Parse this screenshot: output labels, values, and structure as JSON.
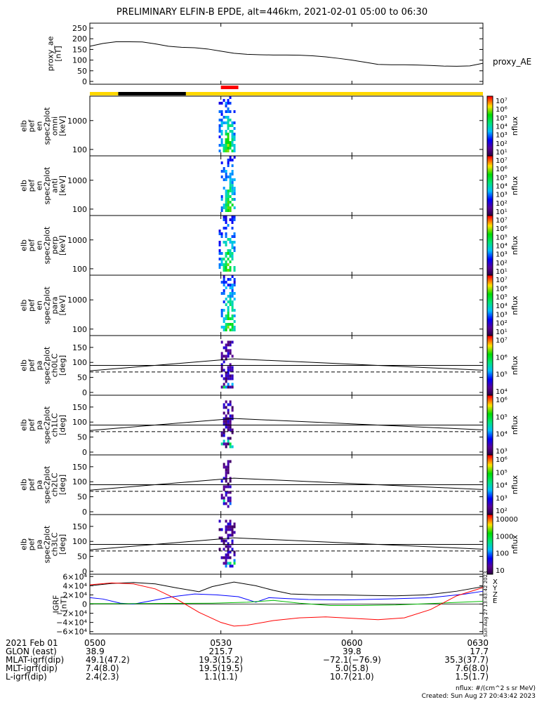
{
  "title": "PRELIMINARY ELFIN-B EPDE, alt=446km, 2021-02-01 05:00 to 06:30",
  "chart_data": [
    {
      "type": "line",
      "ylabel_lines": [
        "proxy_ae",
        "[nT]"
      ],
      "legend": "proxy_AE",
      "ylim": [
        0,
        260
      ],
      "yticks": [
        "250",
        "200",
        "150",
        "100",
        "50",
        "0"
      ],
      "ytick_values": [
        250,
        200,
        150,
        100,
        50,
        0
      ],
      "series": [
        {
          "x": [
            0,
            3,
            6,
            9,
            12,
            15,
            18,
            21,
            24,
            27,
            30,
            33,
            36,
            39,
            42,
            45,
            48,
            51,
            54,
            57,
            60,
            63,
            66,
            69,
            72,
            75,
            78,
            81,
            84,
            87,
            90
          ],
          "values": [
            165,
            178,
            186,
            186,
            185,
            176,
            165,
            160,
            158,
            152,
            142,
            132,
            127,
            125,
            124,
            124,
            123,
            120,
            115,
            108,
            100,
            90,
            80,
            78,
            78,
            77,
            75,
            72,
            71,
            73,
            85
          ]
        }
      ]
    },
    {
      "type": "bar",
      "name": "orbit bars",
      "segments": [
        {
          "t": [
            0,
            6.5
          ],
          "color": "#ffd700"
        },
        {
          "t": [
            6.5,
            22
          ],
          "color": "#000000"
        },
        {
          "t": [
            22,
            90
          ],
          "color": "#ffd700"
        }
      ],
      "science_zone": {
        "t": [
          30,
          34
        ],
        "color": "#ff0000"
      }
    },
    {
      "type": "heatmap",
      "ylabel_lines": [
        "elb",
        "pef",
        "en",
        "spec2plot",
        "omni",
        "[keV]"
      ],
      "yscale": "log",
      "ylim": [
        60,
        7000
      ],
      "yticks": [
        "1000",
        "100"
      ],
      "ytick_values": [
        1000,
        100
      ],
      "t_range": [
        29.5,
        33.5
      ],
      "colorbar": {
        "label": "nflux",
        "scale": "log",
        "range": [
          10,
          10000000
        ],
        "ticks": [
          "10⁷",
          "10⁶",
          "10⁵",
          "10⁴",
          "10³",
          "10²",
          "10¹"
        ]
      }
    },
    {
      "type": "heatmap",
      "ylabel_lines": [
        "elb",
        "pef",
        "en",
        "spec2plot",
        "anti",
        "[keV]"
      ],
      "yscale": "log",
      "ylim": [
        60,
        7000
      ],
      "yticks": [
        "1000",
        "100"
      ],
      "ytick_values": [
        1000,
        100
      ],
      "t_range": [
        30,
        33.5
      ],
      "colorbar": {
        "label": "nflux",
        "scale": "log",
        "range": [
          10,
          10000000
        ],
        "ticks": [
          "10⁷",
          "10⁶",
          "10⁵",
          "10⁴",
          "10³",
          "10²",
          "10¹"
        ]
      }
    },
    {
      "type": "heatmap",
      "ylabel_lines": [
        "elb",
        "pef",
        "en",
        "spec2plot",
        "perp",
        "[keV]"
      ],
      "yscale": "log",
      "ylim": [
        60,
        7000
      ],
      "yticks": [
        "1000",
        "100"
      ],
      "ytick_values": [
        1000,
        100
      ],
      "t_range": [
        29.5,
        33.5
      ],
      "colorbar": {
        "label": "nflux",
        "scale": "log",
        "range": [
          10,
          10000000
        ],
        "ticks": [
          "10⁷",
          "10⁶",
          "10⁵",
          "10⁴",
          "10³",
          "10²",
          "10¹"
        ]
      }
    },
    {
      "type": "heatmap",
      "ylabel_lines": [
        "elb",
        "pef",
        "en",
        "spec2plot",
        "para",
        "[keV]"
      ],
      "yscale": "log",
      "ylim": [
        60,
        7000
      ],
      "yticks": [
        "1000",
        "100"
      ],
      "ytick_values": [
        1000,
        100
      ],
      "t_range": [
        30,
        33.5
      ],
      "colorbar": {
        "label": "nflux",
        "scale": "log",
        "range": [
          10,
          10000000
        ],
        "ticks": [
          "10⁷",
          "10⁶",
          "10⁵",
          "10⁴",
          "10³",
          "10²",
          "10¹"
        ]
      }
    },
    {
      "type": "heatmap",
      "ylabel_lines": [
        "elb",
        "pef",
        "pa",
        "spec2plot",
        "ch0LC",
        "[deg]"
      ],
      "yscale": "linear",
      "ylim": [
        0,
        180
      ],
      "yticks": [
        "150",
        "100",
        "50",
        "0"
      ],
      "ytick_values": [
        150,
        100,
        50,
        0
      ],
      "t_range": [
        30,
        33
      ],
      "reference": {
        "solid": 90,
        "dashed": 68
      },
      "lc_curve": {
        "x": [
          0,
          33,
          90
        ],
        "values": [
          72,
          112,
          74
        ]
      },
      "colorbar": {
        "label": "nflux",
        "scale": "log",
        "range": [
          1000,
          10000000
        ],
        "ticks": [
          "10⁷",
          "10⁶",
          "10⁵",
          "10⁴"
        ]
      }
    },
    {
      "type": "heatmap",
      "ylabel_lines": [
        "elb",
        "pef",
        "pa",
        "spec2plot",
        "ch1LC",
        "[deg]"
      ],
      "yscale": "linear",
      "ylim": [
        0,
        180
      ],
      "yticks": [
        "150",
        "100",
        "50",
        "0"
      ],
      "ytick_values": [
        150,
        100,
        50,
        0
      ],
      "t_range": [
        30,
        33
      ],
      "reference": {
        "solid": 90,
        "dashed": 68
      },
      "lc_curve": {
        "x": [
          0,
          33,
          90
        ],
        "values": [
          72,
          112,
          74
        ]
      },
      "colorbar": {
        "label": "nflux",
        "scale": "log",
        "range": [
          1000,
          1000000
        ],
        "ticks": [
          "10⁶",
          "10⁵",
          "10⁴",
          "10³"
        ]
      }
    },
    {
      "type": "heatmap",
      "ylabel_lines": [
        "elb",
        "pef",
        "pa",
        "spec2plot",
        "ch2LC",
        "[deg]"
      ],
      "yscale": "linear",
      "ylim": [
        0,
        180
      ],
      "yticks": [
        "150",
        "100",
        "50",
        "0"
      ],
      "ytick_values": [
        150,
        100,
        50,
        0
      ],
      "t_range": [
        30,
        32.5
      ],
      "reference": {
        "solid": 90,
        "dashed": 68
      },
      "lc_curve": {
        "x": [
          0,
          33,
          90
        ],
        "values": [
          72,
          112,
          74
        ]
      },
      "colorbar": {
        "label": "nflux",
        "scale": "log",
        "range": [
          100,
          1000000
        ],
        "ticks": [
          "10⁶",
          "10⁵",
          "10⁴",
          "10³",
          "10²"
        ]
      }
    },
    {
      "type": "heatmap",
      "ylabel_lines": [
        "elb",
        "pef",
        "pa",
        "spec2plot",
        "ch3LC",
        "[deg]"
      ],
      "yscale": "linear",
      "ylim": [
        0,
        180
      ],
      "yticks": [
        "150",
        "100",
        "50",
        "0"
      ],
      "ytick_values": [
        150,
        100,
        50,
        0
      ],
      "t_range": [
        29.5,
        33.5
      ],
      "reference": {
        "solid": 90,
        "dashed": 68
      },
      "lc_curve": {
        "x": [
          0,
          33,
          90
        ],
        "values": [
          72,
          112,
          74
        ]
      },
      "colorbar": {
        "label": "nflux",
        "scale": "linear",
        "range": [
          10,
          10000
        ],
        "ticks": [
          "10000",
          "1000",
          "100",
          "10"
        ]
      }
    },
    {
      "type": "line",
      "ylabel_lines": [
        "IGRF",
        "[nT]"
      ],
      "ylim": [
        -65000,
        65000
      ],
      "yticks": [
        "6×10⁴",
        "4×10⁴",
        "2×10⁴",
        "0",
        "−2×10⁴",
        "−4×10⁴",
        "−6×10⁴"
      ],
      "ytick_values": [
        60000,
        40000,
        20000,
        0,
        -20000,
        -40000,
        -60000
      ],
      "legend_entries": [
        {
          "label": "X",
          "color": "#000000"
        },
        {
          "label": "Y",
          "color": "#0000ff"
        },
        {
          "label": "Z",
          "color": "#ff0000"
        },
        {
          "label": "E",
          "color": "#00bb00"
        }
      ],
      "series": [
        {
          "name": "black",
          "color": "#000000",
          "x": [
            0,
            5,
            10,
            15,
            20,
            25,
            28,
            33,
            38,
            42,
            46,
            52,
            57,
            63,
            70,
            77,
            84,
            90
          ],
          "values": [
            40000,
            45000,
            47000,
            44000,
            35000,
            27000,
            38000,
            48000,
            40000,
            30000,
            22000,
            20000,
            20000,
            19000,
            18000,
            20000,
            28000,
            38000
          ]
        },
        {
          "name": "blue",
          "color": "#0000ff",
          "x": [
            0,
            3,
            7,
            10,
            14,
            19,
            24,
            29,
            34,
            38,
            41,
            45,
            50,
            58,
            68,
            78,
            86,
            90
          ],
          "values": [
            14000,
            11000,
            2000,
            0,
            7000,
            16000,
            22000,
            20000,
            16000,
            4000,
            14000,
            12000,
            10000,
            9000,
            11000,
            14000,
            22000,
            28000
          ]
        },
        {
          "name": "green",
          "color": "#00bb00",
          "x": [
            0,
            8,
            20,
            28,
            36,
            42,
            48,
            55,
            62,
            70,
            80,
            90
          ],
          "values": [
            1000,
            1000,
            1500,
            2000,
            4000,
            8000,
            2000,
            -3000,
            -3000,
            -2000,
            2000,
            6000
          ]
        },
        {
          "name": "red",
          "color": "#ff0000",
          "x": [
            0,
            5,
            10,
            15,
            20,
            25,
            30,
            33,
            36,
            42,
            48,
            54,
            60,
            66,
            72,
            78,
            84,
            90
          ],
          "values": [
            42000,
            46000,
            44000,
            33000,
            10000,
            -18000,
            -40000,
            -48000,
            -46000,
            -36000,
            -30000,
            -28000,
            -31000,
            -34000,
            -30000,
            -12000,
            18000,
            36000
          ]
        }
      ],
      "side_note": "Sun Aug 27 13:43:42 2023"
    }
  ],
  "xaxis": {
    "ticks": [
      {
        "t": 0,
        "label": "0500"
      },
      {
        "t": 30,
        "label": "0530"
      },
      {
        "t": 60,
        "label": "0600"
      },
      {
        "t": 90,
        "label": "0630"
      }
    ],
    "rows": [
      {
        "label": "2021 Feb 01",
        "values": [
          "0500",
          "0530",
          "0600",
          "0630"
        ]
      },
      {
        "label": "GLON (east)",
        "values": [
          "38.9",
          "215.7",
          "39.8",
          "17.7"
        ]
      },
      {
        "label": "MLAT-igrf(dip)",
        "values": [
          "49.1(47.2)",
          "19.3(15.2)",
          "−72.1(−76.9)",
          "35.3(37.7)"
        ]
      },
      {
        "label": "MLT-igrf(dip)",
        "values": [
          "7.4(8.0)",
          "19.5(19.5)",
          "5.0(5.8)",
          "7.6(8.0)"
        ]
      },
      {
        "label": "L-igrf(dip)",
        "values": [
          "2.4(2.3)",
          "1.1(1.1)",
          "10.7(21.0)",
          "1.5(1.7)"
        ]
      }
    ]
  },
  "footer": {
    "units": "nflux: #/(cm^2 s sr MeV)",
    "created": "Created: Sun Aug 27 20:43:42 2023"
  }
}
